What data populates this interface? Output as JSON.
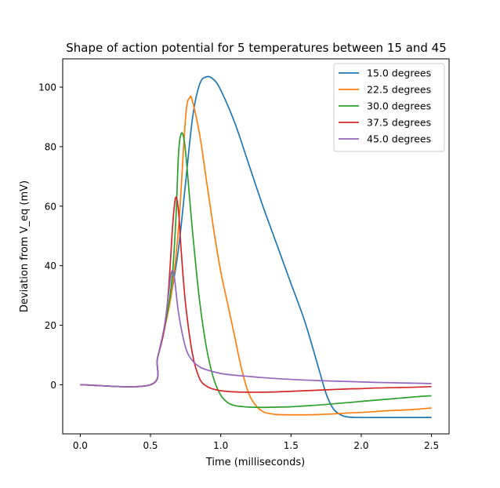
{
  "chart_data": {
    "type": "line",
    "title": "Shape of action potential for 5 temperatures between 15 and 45",
    "xlabel": "Time (milliseconds)",
    "ylabel": "Deviation from V_eq (mV)",
    "xlim": [
      -0.125,
      2.625
    ],
    "ylim": [
      -16.5,
      109.5
    ],
    "xticks": [
      0.0,
      0.5,
      1.0,
      1.5,
      2.0,
      2.5
    ],
    "xtick_labels": [
      "0.0",
      "0.5",
      "1.0",
      "1.5",
      "2.0",
      "2.5"
    ],
    "yticks": [
      0,
      20,
      40,
      60,
      80,
      100
    ],
    "ytick_labels": [
      "0",
      "20",
      "40",
      "60",
      "80",
      "100"
    ],
    "grid": false,
    "legend_position": "top-right",
    "series": [
      {
        "name": "15.0 degrees",
        "color": "#1f77b4",
        "x": [
          0,
          0.5,
          0.55,
          0.6,
          0.65,
          0.7,
          0.75,
          0.8,
          0.85,
          0.9,
          0.95,
          1.0,
          1.1,
          1.2,
          1.3,
          1.4,
          1.5,
          1.6,
          1.7,
          1.75,
          1.8,
          1.85,
          1.9,
          2.0,
          2.1,
          2.2,
          2.3,
          2.4,
          2.5
        ],
        "y": [
          0,
          0,
          9,
          19,
          31,
          46,
          68,
          90,
          101,
          103.5,
          102.5,
          99,
          88,
          74,
          60,
          47,
          34,
          21,
          5,
          -3,
          -8,
          -10,
          -10.8,
          -11,
          -11,
          -11,
          -11,
          -11,
          -11
        ]
      },
      {
        "name": "22.5 degrees",
        "color": "#ff7f0e",
        "x": [
          0,
          0.5,
          0.55,
          0.6,
          0.65,
          0.7,
          0.75,
          0.78,
          0.8,
          0.85,
          0.9,
          0.95,
          1.0,
          1.05,
          1.1,
          1.15,
          1.2,
          1.25,
          1.3,
          1.35,
          1.4,
          1.5,
          1.6,
          1.7,
          1.8,
          1.9,
          2.0,
          2.1,
          2.2,
          2.3,
          2.4,
          2.5
        ],
        "y": [
          0,
          0,
          9,
          19,
          31,
          53,
          90,
          96.5,
          95,
          84,
          68,
          52,
          38,
          27,
          16,
          5,
          -3,
          -7,
          -9,
          -9.7,
          -10,
          -10.1,
          -10.1,
          -10,
          -9.8,
          -9.5,
          -9.3,
          -9,
          -8.7,
          -8.5,
          -8.2,
          -7.8
        ]
      },
      {
        "name": "30.0 degrees",
        "color": "#2ca02c",
        "x": [
          0,
          0.5,
          0.55,
          0.6,
          0.65,
          0.68,
          0.7,
          0.72,
          0.74,
          0.76,
          0.8,
          0.85,
          0.9,
          0.95,
          1.0,
          1.05,
          1.1,
          1.15,
          1.2,
          1.3,
          1.4,
          1.5,
          1.6,
          1.7,
          1.8,
          1.9,
          2.0,
          2.1,
          2.2,
          2.3,
          2.4,
          2.5
        ],
        "y": [
          0,
          0,
          9,
          19,
          34,
          55,
          78,
          84.5,
          82,
          73,
          51,
          28,
          12,
          2,
          -3.5,
          -6,
          -7,
          -7.3,
          -7.5,
          -7.6,
          -7.5,
          -7.4,
          -7.1,
          -6.8,
          -6.4,
          -6,
          -5.6,
          -5.2,
          -4.8,
          -4.4,
          -4,
          -3.7
        ]
      },
      {
        "name": "37.5 degrees",
        "color": "#d62728",
        "x": [
          0,
          0.5,
          0.55,
          0.6,
          0.63,
          0.66,
          0.68,
          0.7,
          0.72,
          0.75,
          0.8,
          0.85,
          0.9,
          0.95,
          1.0,
          1.1,
          1.2,
          1.3,
          1.4,
          1.5,
          1.6,
          1.7,
          1.8,
          1.9,
          2.0,
          2.1,
          2.2,
          2.3,
          2.4,
          2.5
        ],
        "y": [
          0,
          0,
          9,
          19,
          33,
          55,
          63,
          58,
          44,
          27,
          10,
          2,
          -0.5,
          -1.5,
          -2,
          -2.4,
          -2.5,
          -2.5,
          -2.4,
          -2.2,
          -2,
          -1.8,
          -1.6,
          -1.4,
          -1.3,
          -1.1,
          -1,
          -0.9,
          -0.8,
          -0.6
        ]
      },
      {
        "name": "45.0 degrees",
        "color": "#9467bd",
        "x": [
          0,
          0.5,
          0.55,
          0.6,
          0.63,
          0.65,
          0.67,
          0.7,
          0.75,
          0.8,
          0.85,
          0.9,
          1.0,
          1.1,
          1.2,
          1.3,
          1.5,
          1.7,
          1.9,
          2.1,
          2.3,
          2.5
        ],
        "y": [
          0,
          0,
          9,
          20,
          31,
          38,
          36,
          24,
          12.5,
          8,
          6,
          5,
          3.8,
          3.2,
          2.8,
          2.4,
          1.8,
          1.4,
          1.1,
          0.8,
          0.6,
          0.4
        ]
      }
    ]
  }
}
